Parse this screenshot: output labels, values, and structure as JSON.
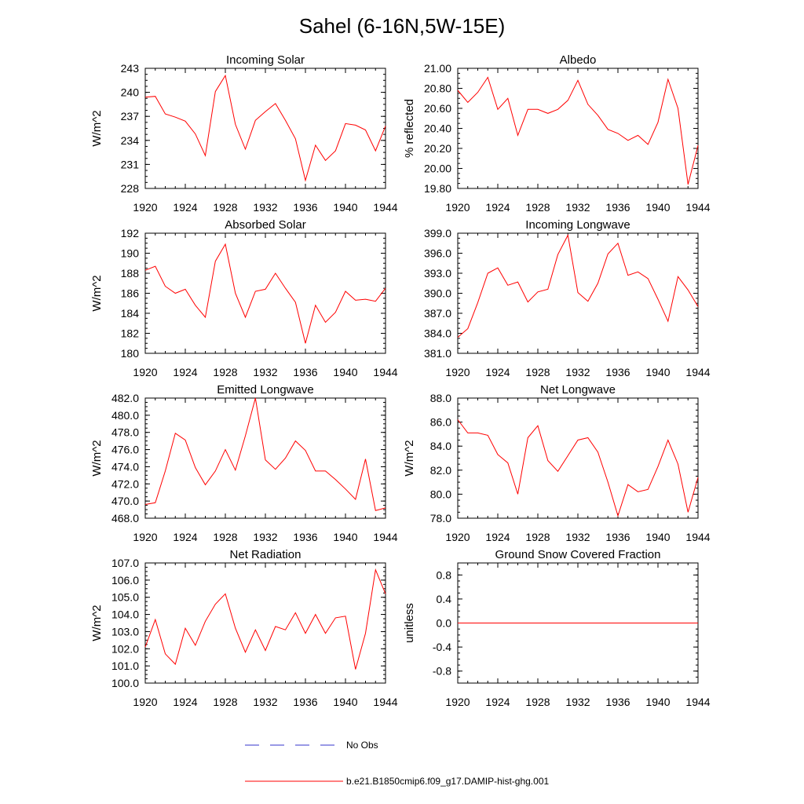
{
  "title": "Sahel (6-16N,5W-15E)",
  "legend": {
    "entries": [
      {
        "label": "No Obs",
        "color": "#3333cc",
        "style": "dashed"
      },
      {
        "label": "b.e21.B1850cmip6.f09_g17.DAMIP-hist-ghg.001",
        "color": "#ff0000",
        "style": "solid"
      }
    ]
  },
  "chart_data": [
    {
      "type": "line",
      "title": "Incoming Solar",
      "ylabel": "W/m^2",
      "xlim": [
        1920,
        1944
      ],
      "ylim": [
        228,
        243
      ],
      "xticks": [
        "1920",
        "1924",
        "1928",
        "1932",
        "1936",
        "1940",
        "1944"
      ],
      "yticks": [
        "228",
        "231",
        "234",
        "237",
        "240",
        "243"
      ],
      "grid": false,
      "series": [
        {
          "color": "#ff0000",
          "x": [
            1920,
            1921,
            1922,
            1923,
            1924,
            1925,
            1926,
            1927,
            1928,
            1929,
            1930,
            1931,
            1932,
            1933,
            1934,
            1935,
            1936,
            1937,
            1938,
            1939,
            1940,
            1941,
            1942,
            1943,
            1944
          ],
          "values": [
            239.4,
            239.5,
            237.3,
            236.9,
            236.4,
            234.8,
            232.1,
            240.1,
            242.1,
            236.0,
            232.9,
            236.5,
            237.6,
            238.6,
            236.5,
            234.2,
            229.0,
            233.4,
            231.5,
            232.7,
            236.1,
            235.9,
            235.3,
            232.7,
            235.8
          ]
        }
      ]
    },
    {
      "type": "line",
      "title": "Albedo",
      "ylabel": "% reflected",
      "xlim": [
        1920,
        1944
      ],
      "ylim": [
        19.8,
        21.0
      ],
      "xticks": [
        "1920",
        "1924",
        "1928",
        "1932",
        "1936",
        "1940",
        "1944"
      ],
      "yticks": [
        "19.80",
        "20.00",
        "20.20",
        "20.40",
        "20.60",
        "20.80",
        "21.00"
      ],
      "grid": false,
      "series": [
        {
          "color": "#ff0000",
          "x": [
            1920,
            1921,
            1922,
            1923,
            1924,
            1925,
            1926,
            1927,
            1928,
            1929,
            1930,
            1931,
            1932,
            1933,
            1934,
            1935,
            1936,
            1937,
            1938,
            1939,
            1940,
            1941,
            1942,
            1943,
            1944
          ],
          "values": [
            20.78,
            20.66,
            20.76,
            20.91,
            20.59,
            20.7,
            20.33,
            20.59,
            20.59,
            20.55,
            20.59,
            20.68,
            20.88,
            20.64,
            20.53,
            20.39,
            20.35,
            20.28,
            20.33,
            20.24,
            20.46,
            20.89,
            20.6,
            19.84,
            20.23
          ]
        }
      ]
    },
    {
      "type": "line",
      "title": "Absorbed Solar",
      "ylabel": "W/m^2",
      "xlim": [
        1920,
        1944
      ],
      "ylim": [
        180,
        192
      ],
      "xticks": [
        "1920",
        "1924",
        "1928",
        "1932",
        "1936",
        "1940",
        "1944"
      ],
      "yticks": [
        "180",
        "182",
        "184",
        "186",
        "188",
        "190",
        "192"
      ],
      "grid": false,
      "series": [
        {
          "color": "#ff0000",
          "x": [
            1920,
            1921,
            1922,
            1923,
            1924,
            1925,
            1926,
            1927,
            1928,
            1929,
            1930,
            1931,
            1932,
            1933,
            1934,
            1935,
            1936,
            1937,
            1938,
            1939,
            1940,
            1941,
            1942,
            1943,
            1944
          ],
          "values": [
            188.3,
            188.7,
            186.7,
            186.0,
            186.4,
            184.8,
            183.6,
            189.2,
            190.9,
            186.0,
            183.6,
            186.2,
            186.4,
            188.0,
            186.5,
            185.1,
            181.0,
            184.8,
            183.1,
            184.1,
            186.2,
            185.3,
            185.4,
            185.2,
            186.5
          ]
        }
      ]
    },
    {
      "type": "line",
      "title": "Incoming Longwave",
      "ylabel": "",
      "xlim": [
        1920,
        1944
      ],
      "ylim": [
        381,
        399
      ],
      "xticks": [
        "1920",
        "1924",
        "1928",
        "1932",
        "1936",
        "1940",
        "1944"
      ],
      "yticks": [
        "381.0",
        "384.0",
        "387.0",
        "390.0",
        "393.0",
        "396.0",
        "399.0"
      ],
      "grid": false,
      "series": [
        {
          "color": "#ff0000",
          "x": [
            1920,
            1921,
            1922,
            1923,
            1924,
            1925,
            1926,
            1927,
            1928,
            1929,
            1930,
            1931,
            1932,
            1933,
            1934,
            1935,
            1936,
            1937,
            1938,
            1939,
            1940,
            1941,
            1942,
            1943,
            1944
          ],
          "values": [
            383.4,
            384.7,
            388.6,
            393.0,
            393.8,
            391.2,
            391.7,
            388.7,
            390.2,
            390.6,
            395.8,
            398.7,
            390.1,
            388.8,
            391.5,
            395.9,
            397.5,
            392.7,
            393.2,
            392.2,
            389.1,
            385.8,
            392.5,
            390.5,
            388.0
          ]
        }
      ]
    },
    {
      "type": "line",
      "title": "Emitted Longwave",
      "ylabel": "W/m^2",
      "xlim": [
        1920,
        1944
      ],
      "ylim": [
        468,
        482
      ],
      "xticks": [
        "1920",
        "1924",
        "1928",
        "1932",
        "1936",
        "1940",
        "1944"
      ],
      "yticks": [
        "468.0",
        "470.0",
        "472.0",
        "474.0",
        "476.0",
        "478.0",
        "480.0",
        "482.0"
      ],
      "grid": false,
      "series": [
        {
          "color": "#ff0000",
          "x": [
            1920,
            1921,
            1922,
            1923,
            1924,
            1925,
            1926,
            1927,
            1928,
            1929,
            1930,
            1931,
            1932,
            1933,
            1934,
            1935,
            1936,
            1937,
            1938,
            1939,
            1940,
            1941,
            1942,
            1943,
            1944
          ],
          "values": [
            469.6,
            469.8,
            473.5,
            477.9,
            477.1,
            473.9,
            471.9,
            473.5,
            476.0,
            473.6,
            477.6,
            482.0,
            474.8,
            473.7,
            475.0,
            477.0,
            475.9,
            473.5,
            473.5,
            472.5,
            471.4,
            470.2,
            474.9,
            468.9,
            469.2
          ]
        }
      ]
    },
    {
      "type": "line",
      "title": "Net Longwave",
      "ylabel": "W/m^2",
      "xlim": [
        1920,
        1944
      ],
      "ylim": [
        78,
        88
      ],
      "xticks": [
        "1920",
        "1924",
        "1928",
        "1932",
        "1936",
        "1940",
        "1944"
      ],
      "yticks": [
        "78.0",
        "80.0",
        "82.0",
        "84.0",
        "86.0",
        "88.0"
      ],
      "grid": false,
      "series": [
        {
          "color": "#ff0000",
          "x": [
            1920,
            1921,
            1922,
            1923,
            1924,
            1925,
            1926,
            1927,
            1928,
            1929,
            1930,
            1931,
            1932,
            1933,
            1934,
            1935,
            1936,
            1937,
            1938,
            1939,
            1940,
            1941,
            1942,
            1943,
            1944
          ],
          "values": [
            86.2,
            85.1,
            85.1,
            84.9,
            83.3,
            82.6,
            80.0,
            84.7,
            85.7,
            82.8,
            81.9,
            83.2,
            84.5,
            84.7,
            83.5,
            81.0,
            78.2,
            80.8,
            80.2,
            80.4,
            82.3,
            84.5,
            82.5,
            78.5,
            81.4
          ]
        }
      ]
    },
    {
      "type": "line",
      "title": "Net Radiation",
      "ylabel": "W/m^2",
      "xlim": [
        1920,
        1944
      ],
      "ylim": [
        100,
        107
      ],
      "xticks": [
        "1920",
        "1924",
        "1928",
        "1932",
        "1936",
        "1940",
        "1944"
      ],
      "yticks": [
        "100.0",
        "101.0",
        "102.0",
        "103.0",
        "104.0",
        "105.0",
        "106.0",
        "107.0"
      ],
      "grid": false,
      "series": [
        {
          "color": "#ff0000",
          "x": [
            1920,
            1921,
            1922,
            1923,
            1924,
            1925,
            1926,
            1927,
            1928,
            1929,
            1930,
            1931,
            1932,
            1933,
            1934,
            1935,
            1936,
            1937,
            1938,
            1939,
            1940,
            1941,
            1942,
            1943,
            1944
          ],
          "values": [
            102.1,
            103.7,
            101.7,
            101.1,
            103.2,
            102.2,
            103.6,
            104.6,
            105.2,
            103.2,
            101.8,
            103.1,
            101.9,
            103.3,
            103.1,
            104.1,
            102.9,
            104.0,
            102.9,
            103.8,
            103.9,
            100.8,
            102.9,
            106.6,
            105.2
          ]
        }
      ]
    },
    {
      "type": "line",
      "title": "Ground Snow Covered Fraction",
      "ylabel": "unitless",
      "xlim": [
        1920,
        1944
      ],
      "ylim": [
        -1.0,
        1.0
      ],
      "xticks": [
        "1920",
        "1924",
        "1928",
        "1932",
        "1936",
        "1940",
        "1944"
      ],
      "yticks": [
        "-0.8",
        "-0.4",
        "0.0",
        "0.4",
        "0.8"
      ],
      "grid": false,
      "series": [
        {
          "color": "#ff0000",
          "x": [
            1920,
            1921,
            1922,
            1923,
            1924,
            1925,
            1926,
            1927,
            1928,
            1929,
            1930,
            1931,
            1932,
            1933,
            1934,
            1935,
            1936,
            1937,
            1938,
            1939,
            1940,
            1941,
            1942,
            1943,
            1944
          ],
          "values": [
            0,
            0,
            0,
            0,
            0,
            0,
            0,
            0,
            0,
            0,
            0,
            0,
            0,
            0,
            0,
            0,
            0,
            0,
            0,
            0,
            0,
            0,
            0,
            0,
            0
          ]
        }
      ]
    }
  ]
}
